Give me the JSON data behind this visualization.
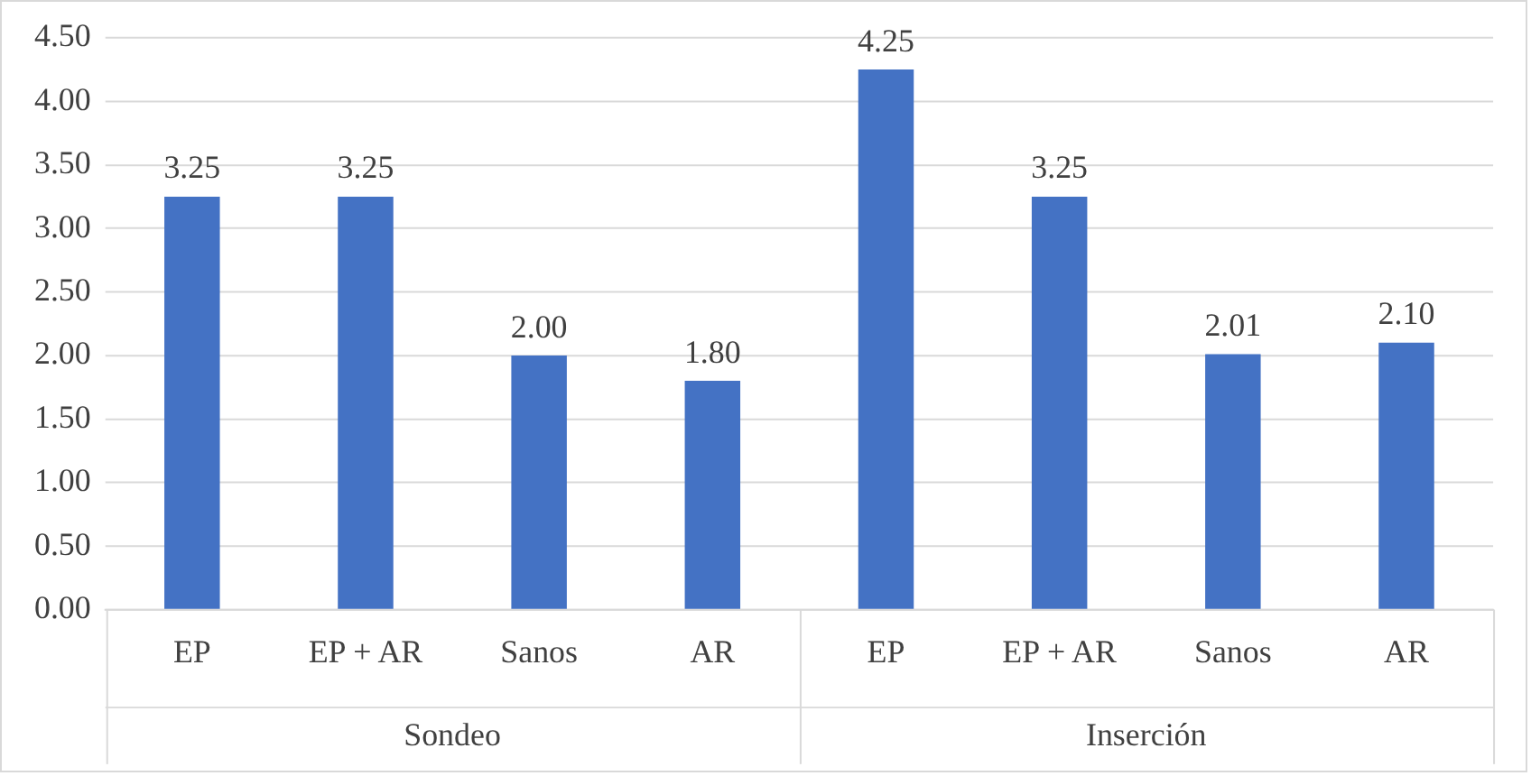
{
  "chart_data": {
    "type": "bar",
    "categories": [
      "EP",
      "EP + AR",
      "Sanos",
      "AR",
      "EP",
      "EP + AR",
      "Sanos",
      "AR"
    ],
    "values": [
      3.25,
      3.25,
      2.0,
      1.8,
      4.25,
      3.25,
      2.01,
      2.1
    ],
    "value_labels": [
      "3.25",
      "3.25",
      "2.00",
      "1.80",
      "4.25",
      "3.25",
      "2.01",
      "2.10"
    ],
    "color": "#4472c4",
    "ylim": [
      0,
      4.5
    ],
    "yticks": [
      {
        "value": 0,
        "label": "0.00"
      },
      {
        "value": 0.5,
        "label": "0.50"
      },
      {
        "value": 1,
        "label": "1.00"
      },
      {
        "value": 1.5,
        "label": "1.50"
      },
      {
        "value": 2,
        "label": "2.00"
      },
      {
        "value": 2.5,
        "label": "2.50"
      },
      {
        "value": 3,
        "label": "3.00"
      },
      {
        "value": 3.5,
        "label": "3.50"
      },
      {
        "value": 4,
        "label": "4.00"
      },
      {
        "value": 4.5,
        "label": "4.50"
      }
    ],
    "annotations": [
      "Sondeo",
      "Inserción"
    ],
    "grid": "y"
  }
}
